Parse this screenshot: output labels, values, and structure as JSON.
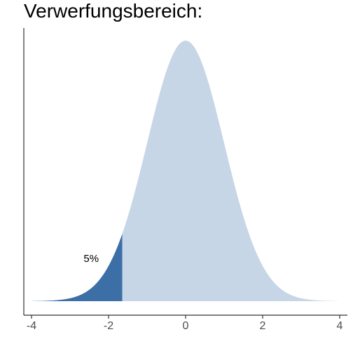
{
  "chart_data": {
    "type": "area",
    "title": "Verwerfungsbereich:",
    "xlabel": "",
    "ylabel": "",
    "xlim": [
      -4.2,
      4.2
    ],
    "x_ticks": [
      -4,
      -2,
      0,
      2,
      4
    ],
    "x_tick_labels": [
      "-4",
      "-2",
      "0",
      "2",
      "4"
    ],
    "distribution": "standard normal density",
    "rejection_region": {
      "from": -4,
      "to": -1.645
    },
    "annotation": {
      "text": "5%",
      "x": -2.45,
      "y": 0.06
    },
    "colors": {
      "density_fill": "#c6d6e6",
      "rejection_fill": "#3d6fa7",
      "axis": "#333333"
    },
    "grid": false,
    "legend": "none"
  }
}
